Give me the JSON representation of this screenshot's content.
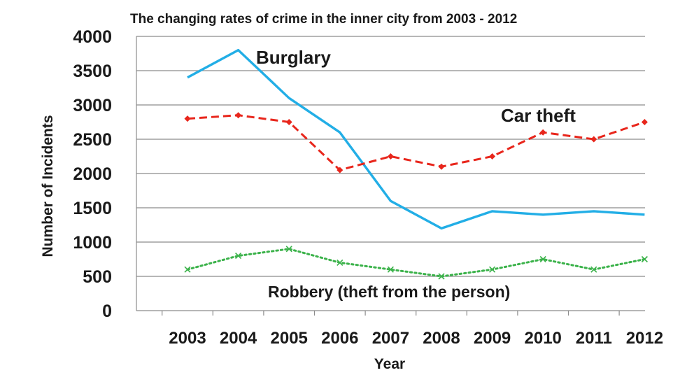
{
  "chart_data": {
    "type": "line",
    "title": "The changing rates of crime in the inner city from 2003 - 2012",
    "xlabel": "Year",
    "ylabel": "Number of Incidents",
    "categories": [
      "2003",
      "2004",
      "2005",
      "2006",
      "2007",
      "2008",
      "2009",
      "2010",
      "2011",
      "2012"
    ],
    "ylim": [
      0,
      4000
    ],
    "yticks": [
      0,
      500,
      1000,
      1500,
      2000,
      2500,
      3000,
      3500,
      4000
    ],
    "grid": "horizontal",
    "legend": "none (series labelled directly on chart)",
    "series": [
      {
        "name": "Burglary",
        "label": "Burglary",
        "color": "#22aee6",
        "line_style": "solid",
        "marker": "none",
        "values": [
          3400,
          3800,
          3100,
          2600,
          1600,
          1200,
          1450,
          1400,
          1450,
          1400
        ]
      },
      {
        "name": "Car theft",
        "label": "Car theft",
        "color": "#e8261c",
        "line_style": "dashed",
        "marker": "diamond",
        "values": [
          2800,
          2850,
          2750,
          2050,
          2250,
          2100,
          2250,
          2600,
          2500,
          2750
        ]
      },
      {
        "name": "Robbery (theft from the person)",
        "label": "Robbery (theft from the person)",
        "color": "#3bb24a",
        "line_style": "dotted",
        "marker": "x",
        "values": [
          600,
          800,
          900,
          700,
          600,
          500,
          600,
          750,
          600,
          750
        ]
      }
    ]
  }
}
